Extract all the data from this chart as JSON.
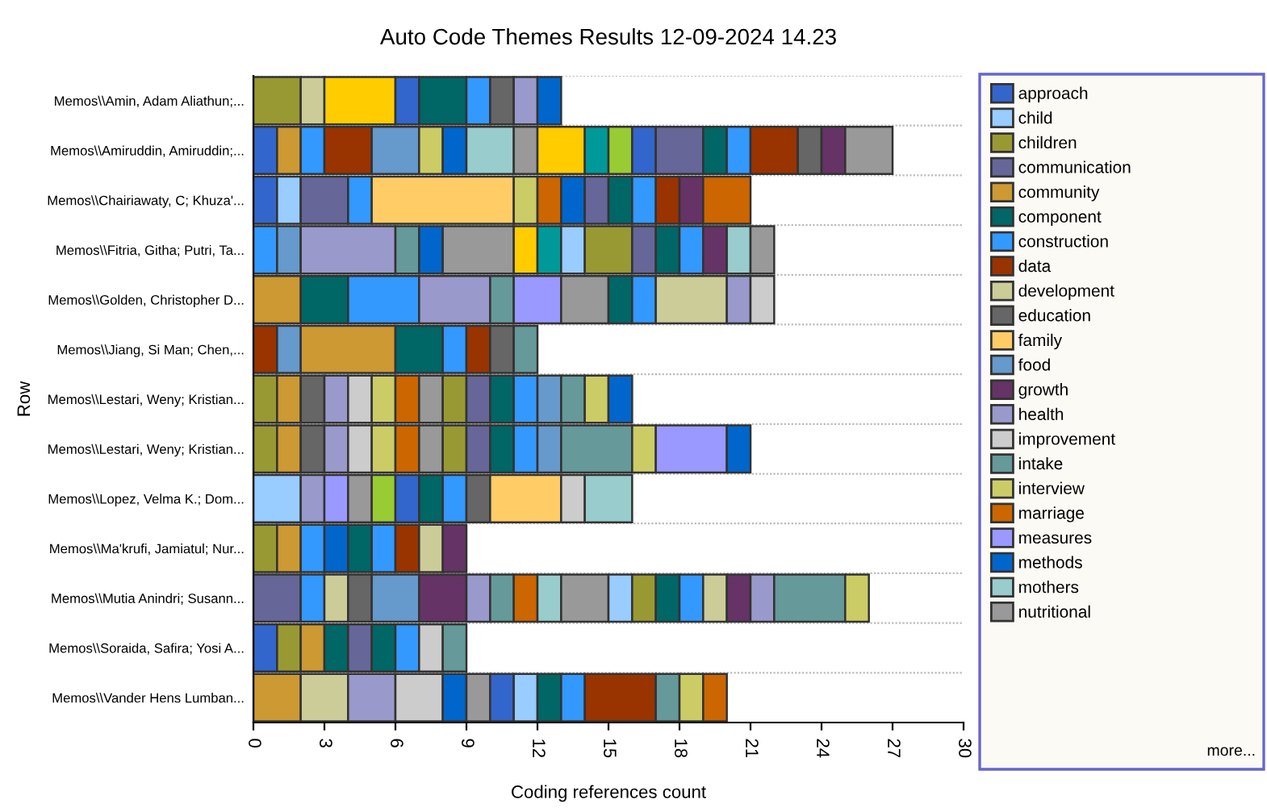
{
  "chart_data": {
    "type": "bar",
    "orientation": "horizontal",
    "stacked": true,
    "title": "Auto Code Themes Results 12-09-2024 14.23",
    "xlabel": "Coding references count",
    "ylabel": "Row",
    "categories": [
      "Memos\\\\Amin, Adam Aliathun;...",
      "Memos\\\\Amiruddin, Amiruddin;...",
      "Memos\\\\Chairiawaty, C; Khuza'...",
      "Memos\\\\Fitria, Githa; Putri, Ta...",
      "Memos\\\\Golden, Christopher D...",
      "Memos\\\\Jiang, Si Man; Chen,...",
      "Memos\\\\Lestari, Weny; Kristian...",
      "Memos\\\\Lestari, Weny; Kristian...",
      "Memos\\\\Lopez, Velma K.; Dom...",
      "Memos\\\\Ma'krufi, Jamiatul; Nur...",
      "Memos\\\\Mutia Anindri; Susann...",
      "Memos\\\\Soraida, Safira; Yosi A...",
      "Memos\\\\Vander Hens Lumban..."
    ],
    "xlim": [
      0,
      30
    ],
    "xticks": [
      0,
      3,
      6,
      9,
      12,
      15,
      18,
      21,
      24,
      27,
      30
    ],
    "grid": "y",
    "legend": "right",
    "annotations": [
      "more..."
    ],
    "series": [
      {
        "values": [
          2,
          1,
          1,
          1,
          2,
          1,
          1,
          1,
          2,
          1,
          2,
          1,
          2
        ],
        "colors": [
          "#999933",
          "#3366cc",
          "#3366cc",
          "#3399ff",
          "#cc9933",
          "#993300",
          "#999933",
          "#999933",
          "#99ccff",
          "#999933",
          "#666699",
          "#3366cc",
          "#cc9933"
        ]
      },
      {
        "values": [
          1,
          1,
          1,
          1,
          2,
          1,
          1,
          1,
          1,
          1,
          1,
          1,
          2
        ],
        "colors": [
          "#cccc99",
          "#cc9933",
          "#99ccff",
          "#6699cc",
          "#006666",
          "#6699cc",
          "#cc9933",
          "#cc9933",
          "#9999cc",
          "#cc9933",
          "#3399ff",
          "#999933",
          "#cccc99"
        ]
      },
      {
        "values": [
          3,
          1,
          2,
          4,
          3,
          4,
          1,
          1,
          1,
          1,
          1,
          1,
          2
        ],
        "colors": [
          "#ffcc00",
          "#3399ff",
          "#666699",
          "#9999cc",
          "#3399ff",
          "#cc9933",
          "#666666",
          "#666666",
          "#9999ff",
          "#3399ff",
          "#cccc99",
          "#cc9933",
          "#9999cc"
        ]
      },
      {
        "values": [
          1,
          2,
          1,
          1,
          3,
          2,
          1,
          1,
          1,
          1,
          1,
          1,
          2
        ],
        "colors": [
          "#3366cc",
          "#993300",
          "#3399ff",
          "#669999",
          "#9999cc",
          "#006666",
          "#9999cc",
          "#9999cc",
          "#999999",
          "#0066cc",
          "#666666",
          "#006666",
          "#cccccc"
        ]
      },
      {
        "values": [
          2,
          2,
          6,
          1,
          1,
          1,
          1,
          1,
          1,
          1,
          2,
          1,
          1
        ],
        "colors": [
          "#006666",
          "#6699cc",
          "#ffcc66",
          "#0066cc",
          "#669999",
          "#3399ff",
          "#cccccc",
          "#cccccc",
          "#99cc33",
          "#006666",
          "#6699cc",
          "#666699",
          "#0066cc"
        ]
      },
      {
        "values": [
          1,
          1,
          1,
          3,
          2,
          1,
          1,
          1,
          1,
          1,
          2,
          1,
          1
        ],
        "colors": [
          "#3399ff",
          "#cccc66",
          "#cccc66",
          "#999999",
          "#9999ff",
          "#993300",
          "#cccc66",
          "#cccc66",
          "#3366cc",
          "#3399ff",
          "#663366",
          "#006666",
          "#999999"
        ]
      },
      {
        "values": [
          1,
          1,
          1,
          1,
          2,
          1,
          1,
          1,
          1,
          1,
          1,
          1,
          1
        ],
        "colors": [
          "#666666",
          "#0066cc",
          "#cc6600",
          "#ffcc00",
          "#999999",
          "#666666",
          "#cc6600",
          "#cc6600",
          "#006666",
          "#993300",
          "#9999cc",
          "#3399ff",
          "#3366cc"
        ]
      },
      {
        "values": [
          1,
          2,
          1,
          1,
          1,
          1,
          1,
          1,
          1,
          1,
          1,
          1,
          1
        ],
        "colors": [
          "#9999cc",
          "#99cccc",
          "#0066cc",
          "#009999",
          "#006666",
          "#669999",
          "#999999",
          "#999999",
          "#3399ff",
          "#cccc99",
          "#669999",
          "#cccccc",
          "#99ccff"
        ]
      },
      {
        "values": [
          1,
          1,
          1,
          1,
          1,
          null,
          1,
          1,
          1,
          1,
          1,
          1,
          1
        ],
        "colors": [
          "#0066cc",
          "#999999",
          "#666699",
          "#99ccff",
          "#3399ff",
          null,
          "#999933",
          "#999933",
          "#666666",
          "#663366",
          "#cc6600",
          "#669999",
          "#006666"
        ]
      },
      {
        "values": [
          null,
          2,
          1,
          2,
          3,
          null,
          1,
          1,
          3,
          null,
          1,
          null,
          1
        ],
        "colors": [
          null,
          "#ffcc00",
          "#006666",
          "#999933",
          "#cccc99",
          null,
          "#666699",
          "#666699",
          "#ffcc66",
          null,
          "#99cccc",
          null,
          "#3399ff"
        ]
      },
      {
        "values": [
          null,
          1,
          1,
          1,
          1,
          null,
          1,
          1,
          1,
          null,
          2,
          null,
          3
        ],
        "colors": [
          null,
          "#009999",
          "#3399ff",
          "#666699",
          "#9999cc",
          null,
          "#006666",
          "#006666",
          "#cccccc",
          null,
          "#999999",
          null,
          "#993300"
        ]
      },
      {
        "values": [
          null,
          1,
          1,
          1,
          1,
          null,
          1,
          1,
          2,
          null,
          1,
          null,
          1
        ],
        "colors": [
          null,
          "#99cc33",
          "#993300",
          "#006666",
          "#cccccc",
          null,
          "#3399ff",
          "#3399ff",
          "#99cccc",
          null,
          "#99ccff",
          null,
          "#669999"
        ]
      },
      {
        "values": [
          null,
          1,
          1,
          1,
          null,
          null,
          1,
          1,
          null,
          null,
          1,
          null,
          1
        ],
        "colors": [
          null,
          "#3366cc",
          "#663366",
          "#3399ff",
          null,
          null,
          "#6699cc",
          "#6699cc",
          null,
          null,
          "#999933",
          null,
          "#cccc66"
        ]
      },
      {
        "values": [
          null,
          2,
          2,
          1,
          null,
          null,
          1,
          3,
          null,
          null,
          1,
          null,
          1
        ],
        "colors": [
          null,
          "#666699",
          "#cc6600",
          "#663366",
          null,
          null,
          "#669999",
          "#669999",
          null,
          null,
          "#006666",
          null,
          "#cc6600"
        ]
      },
      {
        "values": [
          null,
          1,
          null,
          1,
          null,
          null,
          1,
          1,
          null,
          null,
          1,
          null,
          null
        ],
        "colors": [
          null,
          "#006666",
          null,
          "#99cccc",
          null,
          null,
          "#cccc66",
          "#cccc66",
          null,
          null,
          "#3399ff",
          null,
          null
        ]
      },
      {
        "values": [
          null,
          1,
          null,
          1,
          null,
          null,
          1,
          3,
          null,
          null,
          1,
          null,
          null
        ],
        "colors": [
          null,
          "#3399ff",
          null,
          "#999999",
          null,
          null,
          "#0066cc",
          "#9999ff",
          null,
          null,
          "#cccc99",
          null,
          null
        ]
      },
      {
        "values": [
          null,
          2,
          null,
          null,
          null,
          null,
          null,
          1,
          null,
          null,
          1,
          null,
          null
        ],
        "colors": [
          null,
          "#993300",
          null,
          null,
          null,
          null,
          null,
          "#0066cc",
          null,
          null,
          "#663366",
          null,
          null
        ]
      },
      {
        "values": [
          null,
          1,
          null,
          null,
          null,
          null,
          null,
          null,
          null,
          null,
          1,
          null,
          null
        ],
        "colors": [
          null,
          "#666666",
          null,
          null,
          null,
          null,
          null,
          null,
          null,
          null,
          "#9999cc",
          null,
          null
        ]
      },
      {
        "values": [
          null,
          1,
          null,
          null,
          null,
          null,
          null,
          null,
          null,
          null,
          3,
          null,
          null
        ],
        "colors": [
          null,
          "#663366",
          null,
          null,
          null,
          null,
          null,
          null,
          null,
          null,
          "#669999",
          null,
          null
        ]
      },
      {
        "values": [
          null,
          2,
          null,
          null,
          null,
          null,
          null,
          null,
          null,
          null,
          1,
          null,
          null
        ],
        "colors": [
          null,
          "#999999",
          null,
          null,
          null,
          null,
          null,
          null,
          null,
          null,
          "#cccc66",
          null,
          null
        ]
      },
      {
        "name": "approach",
        "color": "#3366cc",
        "values": [
          null,
          null,
          null,
          null,
          null,
          null,
          null,
          null,
          null,
          null,
          null,
          null,
          null
        ]
      },
      {
        "name": "child",
        "color": "#99ccff",
        "values": [
          null,
          null,
          null,
          null,
          null,
          null,
          null,
          null,
          null,
          null,
          null,
          null,
          null
        ]
      },
      {
        "name": "children",
        "color": "#999933",
        "values": [
          null,
          null,
          null,
          null,
          null,
          null,
          null,
          null,
          null,
          null,
          null,
          null,
          null
        ]
      },
      {
        "name": "communication",
        "color": "#666699",
        "values": [
          null,
          null,
          null,
          null,
          null,
          null,
          null,
          null,
          null,
          null,
          null,
          null,
          null
        ]
      },
      {
        "name": "community",
        "color": "#cc9933",
        "values": [
          null,
          null,
          null,
          null,
          null,
          null,
          null,
          null,
          null,
          null,
          null,
          null,
          null
        ]
      },
      {
        "name": "component",
        "color": "#006666",
        "values": [
          null,
          null,
          null,
          null,
          null,
          null,
          null,
          null,
          null,
          null,
          null,
          null,
          null
        ]
      },
      {
        "name": "construction",
        "color": "#3399ff",
        "values": [
          null,
          null,
          null,
          null,
          null,
          null,
          null,
          null,
          null,
          null,
          null,
          null,
          null
        ]
      },
      {
        "name": "data",
        "color": "#993300",
        "values": [
          null,
          null,
          null,
          null,
          null,
          null,
          null,
          null,
          null,
          null,
          null,
          null,
          null
        ]
      },
      {
        "name": "development",
        "color": "#cccc99",
        "values": [
          null,
          null,
          null,
          null,
          null,
          null,
          null,
          null,
          null,
          null,
          null,
          null,
          null
        ]
      },
      {
        "name": "education",
        "color": "#666666",
        "values": [
          null,
          null,
          null,
          null,
          null,
          null,
          null,
          null,
          null,
          null,
          null,
          null,
          null
        ]
      },
      {
        "name": "family",
        "color": "#ffcc66",
        "values": [
          null,
          null,
          null,
          null,
          null,
          null,
          null,
          null,
          null,
          null,
          null,
          null,
          null
        ]
      },
      {
        "name": "food",
        "color": "#6699cc",
        "values": [
          null,
          null,
          null,
          null,
          null,
          null,
          null,
          null,
          null,
          null,
          null,
          null,
          null
        ]
      },
      {
        "name": "growth",
        "color": "#663366",
        "values": [
          null,
          null,
          null,
          null,
          null,
          null,
          null,
          null,
          null,
          null,
          null,
          null,
          null
        ]
      },
      {
        "name": "health",
        "color": "#9999cc",
        "values": [
          null,
          null,
          null,
          null,
          null,
          null,
          null,
          null,
          null,
          null,
          null,
          null,
          null
        ]
      },
      {
        "name": "improvement",
        "color": "#cccccc",
        "values": [
          null,
          null,
          null,
          null,
          null,
          null,
          null,
          null,
          null,
          null,
          null,
          null,
          null
        ]
      },
      {
        "name": "intake",
        "color": "#669999",
        "values": [
          null,
          null,
          null,
          null,
          null,
          null,
          null,
          null,
          null,
          null,
          null,
          null,
          null
        ]
      },
      {
        "name": "interview",
        "color": "#cccc66",
        "values": [
          null,
          null,
          null,
          null,
          null,
          null,
          null,
          null,
          null,
          null,
          null,
          null,
          null
        ]
      },
      {
        "name": "marriage",
        "color": "#cc6600",
        "values": [
          null,
          null,
          null,
          null,
          null,
          null,
          null,
          null,
          null,
          null,
          null,
          null,
          null
        ]
      },
      {
        "name": "measures",
        "color": "#9999ff",
        "values": [
          null,
          null,
          null,
          null,
          null,
          null,
          null,
          null,
          null,
          null,
          null,
          null,
          null
        ]
      },
      {
        "name": "methods",
        "color": "#0066cc",
        "values": [
          null,
          null,
          null,
          null,
          null,
          null,
          null,
          null,
          null,
          null,
          null,
          null,
          null
        ]
      },
      {
        "name": "mothers",
        "color": "#99cccc",
        "values": [
          null,
          null,
          null,
          null,
          null,
          null,
          null,
          null,
          null,
          null,
          null,
          null,
          null
        ]
      },
      {
        "name": "nutritional",
        "color": "#999999",
        "values": [
          null,
          null,
          null,
          null,
          null,
          null,
          null,
          null,
          null,
          null,
          null,
          null,
          null
        ]
      }
    ]
  }
}
